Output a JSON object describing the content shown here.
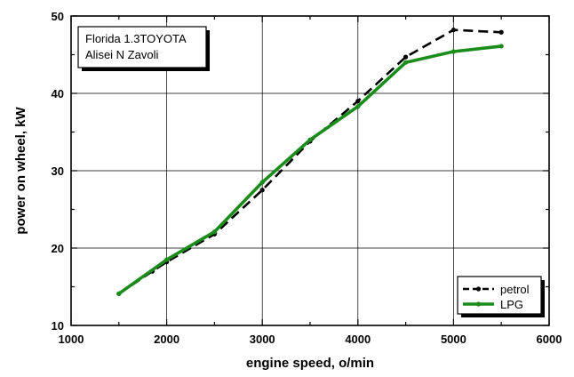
{
  "chart_data": {
    "type": "line",
    "xlabel": "engine speed,  o/min",
    "ylabel": "power on wheel,  kW",
    "xlim": [
      1000,
      6000
    ],
    "ylim": [
      10,
      50
    ],
    "xticks": [
      1000,
      2000,
      3000,
      4000,
      5000,
      6000
    ],
    "yticks": [
      10,
      20,
      30,
      40,
      50
    ],
    "grid": true,
    "legend_position": "bottom-right",
    "info_box": [
      "Florida 1.3TOYOTA",
      "Alisei N Zavoli"
    ],
    "series": [
      {
        "name": "petrol",
        "color": "#000000",
        "style": "dashed",
        "x": [
          1500,
          1850,
          2000,
          2500,
          3000,
          3500,
          4000,
          4500,
          5000,
          5500
        ],
        "y": [
          14.1,
          17.0,
          18.2,
          21.8,
          27.5,
          33.8,
          39.0,
          44.7,
          48.2,
          47.9
        ]
      },
      {
        "name": "LPG",
        "color": "#1a8c1a",
        "style": "solid",
        "x": [
          1500,
          2000,
          2500,
          3000,
          3500,
          4000,
          4500,
          5000,
          5500
        ],
        "y": [
          14.1,
          18.5,
          22.1,
          28.5,
          34.0,
          38.3,
          44.0,
          45.4,
          46.1
        ]
      }
    ]
  }
}
